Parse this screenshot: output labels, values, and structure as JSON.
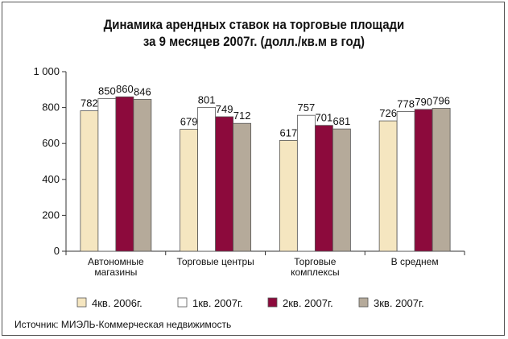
{
  "chart_data": {
    "type": "bar",
    "title_lines": [
      "Динамика арендных ставок на торговые площади",
      "за 9 месяцев 2007г. (долл./кв.м в год)"
    ],
    "categories": [
      [
        "Автономные",
        "магазины"
      ],
      [
        "Торговые центры"
      ],
      [
        "Торговые",
        "комплексы"
      ],
      [
        "В среднем"
      ]
    ],
    "series": [
      {
        "name": "4кв. 2006г.",
        "color": "#f5e6c0",
        "values": [
          782,
          679,
          617,
          726
        ]
      },
      {
        "name": "1кв. 2007г.",
        "color": "#ffffff",
        "values": [
          850,
          801,
          757,
          778
        ]
      },
      {
        "name": "2кв. 2007г.",
        "color": "#8c0a3c",
        "values": [
          860,
          749,
          701,
          790
        ]
      },
      {
        "name": "3кв. 2007г.",
        "color": "#b5aa9a",
        "values": [
          846,
          712,
          681,
          796
        ]
      }
    ],
    "yticks": [
      "0",
      "200",
      "400",
      "600",
      "800",
      "1 000"
    ],
    "ylim": [
      0,
      1000
    ],
    "legend_position": "bottom"
  },
  "source": "Источник: МИЭЛЬ-Коммерческая недвижимость"
}
